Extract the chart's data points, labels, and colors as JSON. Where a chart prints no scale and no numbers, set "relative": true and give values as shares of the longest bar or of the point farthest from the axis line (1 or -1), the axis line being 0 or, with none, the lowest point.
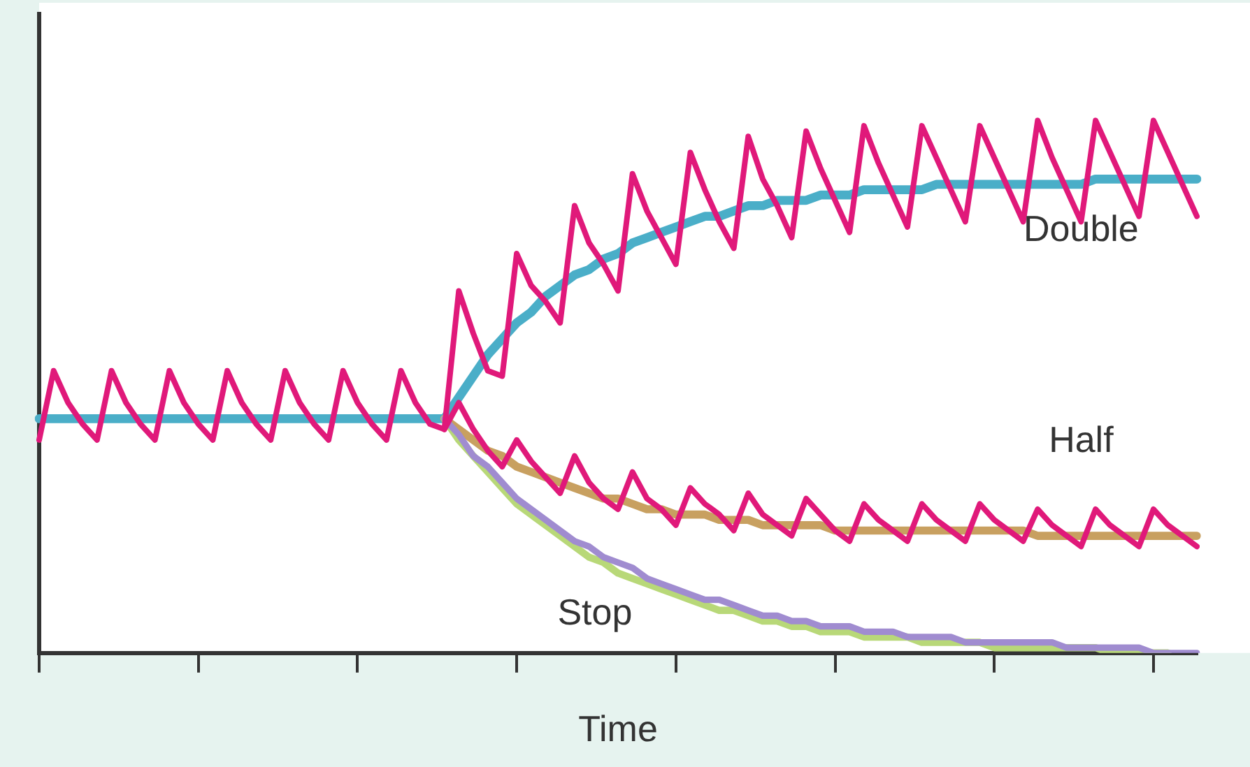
{
  "chart_data": {
    "type": "line",
    "relative": true,
    "xlabel": "Time",
    "legend": false,
    "marker": "none",
    "categories": [
      null,
      null,
      null,
      null,
      null,
      null,
      null,
      null,
      null,
      null,
      null,
      null,
      null,
      null,
      null,
      null,
      null,
      null,
      null,
      null,
      null,
      null,
      null,
      null,
      null,
      null,
      null,
      null,
      null,
      null,
      null,
      null,
      null,
      null,
      null,
      null,
      null,
      null,
      null,
      null,
      null,
      null,
      null,
      null,
      null,
      null,
      null,
      null,
      null,
      null,
      null,
      null,
      null,
      null,
      null,
      null,
      null,
      null,
      null,
      null,
      null,
      null,
      null,
      null,
      null,
      null,
      null,
      null,
      null,
      null,
      null,
      null,
      null,
      null,
      null,
      null,
      null,
      null,
      null,
      null,
      null
    ],
    "annotations": [
      "Double",
      "Half",
      "Stop"
    ],
    "series": [
      {
        "color": "#4aaec8",
        "values": [
          0.44,
          0.44,
          0.44,
          0.44,
          0.44,
          0.44,
          0.44,
          0.44,
          0.44,
          0.44,
          0.44,
          0.44,
          0.44,
          0.44,
          0.44,
          0.44,
          0.44,
          0.44,
          0.44,
          0.44,
          0.44,
          0.44,
          0.44,
          0.44,
          0.44,
          0.44,
          0.44,
          0.44,
          0.44,
          0.48,
          0.52,
          0.56,
          0.59,
          0.62,
          0.64,
          0.67,
          0.69,
          0.71,
          0.72,
          0.74,
          0.75,
          0.77,
          0.78,
          0.79,
          0.8,
          0.81,
          0.82,
          0.82,
          0.83,
          0.84,
          0.84,
          0.85,
          0.85,
          0.85,
          0.86,
          0.86,
          0.86,
          0.87,
          0.87,
          0.87,
          0.87,
          0.87,
          0.88,
          0.88,
          0.88,
          0.88,
          0.88,
          0.88,
          0.88,
          0.88,
          0.88,
          0.88,
          0.88,
          0.89,
          0.89,
          0.89,
          0.89,
          0.89,
          0.89,
          0.89,
          0.89
        ]
      },
      {
        "color": "#c8a060",
        "values": [
          null,
          null,
          null,
          null,
          null,
          null,
          null,
          null,
          null,
          null,
          null,
          null,
          null,
          null,
          null,
          null,
          null,
          null,
          null,
          null,
          null,
          null,
          null,
          null,
          null,
          null,
          null,
          null,
          0.44,
          0.42,
          0.4,
          0.38,
          0.37,
          0.35,
          0.34,
          0.33,
          0.32,
          0.31,
          0.3,
          0.29,
          0.29,
          0.28,
          0.27,
          0.27,
          0.26,
          0.26,
          0.26,
          0.25,
          0.25,
          0.25,
          0.24,
          0.24,
          0.24,
          0.24,
          0.24,
          0.23,
          0.23,
          0.23,
          0.23,
          0.23,
          0.23,
          0.23,
          0.23,
          0.23,
          0.23,
          0.23,
          0.23,
          0.23,
          0.23,
          0.22,
          0.22,
          0.22,
          0.22,
          0.22,
          0.22,
          0.22,
          0.22,
          0.22,
          0.22,
          0.22,
          0.22
        ]
      },
      {
        "color": "#b8d878",
        "values": [
          null,
          null,
          null,
          null,
          null,
          null,
          null,
          null,
          null,
          null,
          null,
          null,
          null,
          null,
          null,
          null,
          null,
          null,
          null,
          null,
          null,
          null,
          null,
          null,
          null,
          null,
          null,
          null,
          0.44,
          0.4,
          0.37,
          0.34,
          0.31,
          0.28,
          0.26,
          0.24,
          0.22,
          0.2,
          0.18,
          0.17,
          0.15,
          0.14,
          0.13,
          0.12,
          0.11,
          0.1,
          0.09,
          0.08,
          0.08,
          0.07,
          0.06,
          0.06,
          0.05,
          0.05,
          0.04,
          0.04,
          0.04,
          0.03,
          0.03,
          0.03,
          0.03,
          0.02,
          0.02,
          0.02,
          0.02,
          0.02,
          0.01,
          0.01,
          0.01,
          0.01,
          0.01,
          0.01,
          0.01,
          0.01,
          0,
          0,
          0,
          0,
          0,
          null,
          null
        ]
      },
      {
        "color": "#a08cd0",
        "values": [
          null,
          null,
          null,
          null,
          null,
          null,
          null,
          null,
          null,
          null,
          null,
          null,
          null,
          null,
          null,
          null,
          null,
          null,
          null,
          null,
          null,
          null,
          null,
          null,
          null,
          null,
          null,
          null,
          0.44,
          0.41,
          0.37,
          0.35,
          0.32,
          0.29,
          0.27,
          0.25,
          0.23,
          0.21,
          0.2,
          0.18,
          0.17,
          0.16,
          0.14,
          0.13,
          0.12,
          0.11,
          0.1,
          0.1,
          0.09,
          0.08,
          0.07,
          0.07,
          0.06,
          0.06,
          0.05,
          0.05,
          0.05,
          0.04,
          0.04,
          0.04,
          0.03,
          0.03,
          0.03,
          0.03,
          0.02,
          0.02,
          0.02,
          0.02,
          0.02,
          0.02,
          0.02,
          0.01,
          0.01,
          0.01,
          0.01,
          0.01,
          0.01,
          0,
          0,
          0,
          0
        ]
      },
      {
        "color": "#e0197a",
        "values": [
          null,
          null,
          null,
          null,
          null,
          null,
          null,
          null,
          null,
          null,
          null,
          null,
          null,
          null,
          null,
          null,
          null,
          null,
          null,
          null,
          null,
          null,
          null,
          null,
          null,
          null,
          null,
          null,
          0.42,
          0.47,
          0.42,
          0.38,
          0.35,
          0.4,
          0.36,
          0.33,
          0.3,
          0.37,
          0.32,
          0.29,
          0.27,
          0.34,
          0.29,
          0.27,
          0.24,
          0.31,
          0.28,
          0.26,
          0.23,
          0.3,
          0.26,
          0.24,
          0.22,
          0.29,
          0.26,
          0.23,
          0.21,
          0.28,
          0.25,
          0.23,
          0.21,
          0.28,
          0.25,
          0.23,
          0.21,
          0.28,
          0.25,
          0.23,
          0.21,
          0.27,
          0.24,
          0.22,
          0.2,
          0.27,
          0.24,
          0.22,
          0.2,
          0.27,
          0.24,
          0.22,
          0.2
        ]
      },
      {
        "color": "#e0197a",
        "values": [
          0.4,
          0.53,
          0.47,
          0.43,
          0.4,
          0.53,
          0.47,
          0.43,
          0.4,
          0.53,
          0.47,
          0.43,
          0.4,
          0.53,
          0.47,
          0.43,
          0.4,
          0.53,
          0.47,
          0.43,
          0.4,
          0.53,
          0.47,
          0.43,
          0.4,
          0.53,
          0.47,
          0.43,
          0.42,
          0.68,
          0.6,
          0.53,
          0.52,
          0.75,
          0.69,
          0.66,
          0.62,
          0.84,
          0.77,
          0.73,
          0.68,
          0.9,
          0.83,
          0.78,
          0.73,
          0.94,
          0.87,
          0.81,
          0.76,
          0.97,
          0.89,
          0.84,
          0.78,
          0.98,
          0.91,
          0.85,
          0.79,
          0.99,
          0.92,
          0.86,
          0.8,
          0.99,
          0.93,
          0.87,
          0.81,
          0.99,
          0.93,
          0.87,
          0.81,
          1.0,
          0.93,
          0.87,
          0.81,
          1.0,
          0.94,
          0.88,
          0.82,
          1.0,
          0.94,
          0.88,
          0.82
        ]
      }
    ]
  }
}
